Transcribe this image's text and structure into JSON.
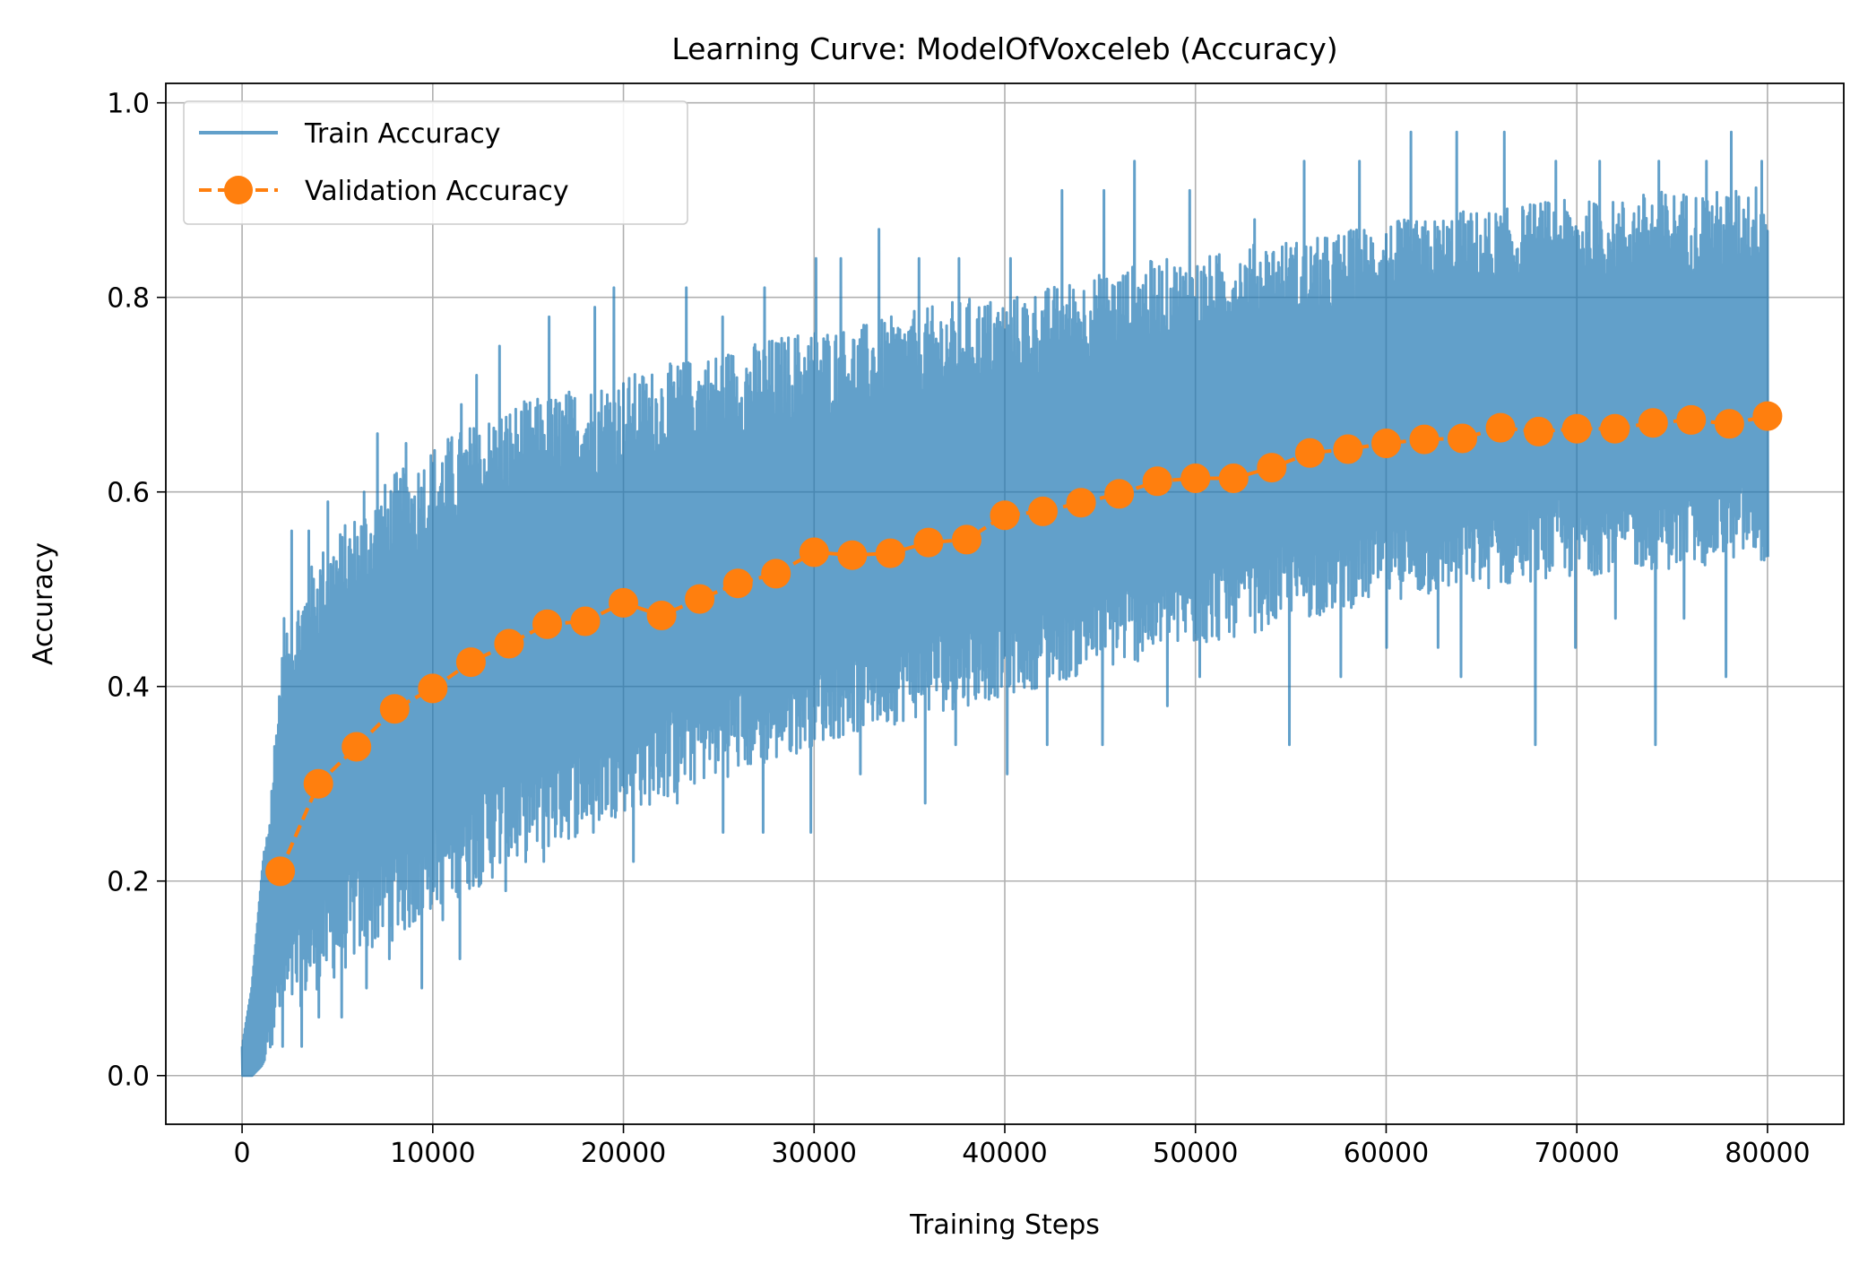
{
  "chart_data": {
    "type": "line",
    "title": "Learning Curve: ModelOfVoxceleb (Accuracy)",
    "xlabel": "Training Steps",
    "ylabel": "Accuracy",
    "xlim": [
      -4000,
      84000
    ],
    "ylim": [
      -0.05,
      1.02
    ],
    "xticks": [
      0,
      10000,
      20000,
      30000,
      40000,
      50000,
      60000,
      70000,
      80000
    ],
    "xtick_labels": [
      "0",
      "10000",
      "20000",
      "30000",
      "40000",
      "50000",
      "60000",
      "70000",
      "80000"
    ],
    "yticks": [
      0.0,
      0.2,
      0.4,
      0.6,
      0.8,
      1.0
    ],
    "ytick_labels": [
      "0.0",
      "0.2",
      "0.4",
      "0.6",
      "0.8",
      "1.0"
    ],
    "grid": true,
    "legend_position": "top-left",
    "series": [
      {
        "name": "Train Accuracy",
        "style": "solid-line",
        "color": "#1f77b4",
        "alpha": 0.7,
        "x": [
          0,
          500,
          1000,
          1500,
          2000,
          3000,
          4000,
          5000,
          6000,
          7000,
          8000,
          9000,
          10000,
          12000,
          14000,
          16000,
          18000,
          20000,
          22000,
          24000,
          26000,
          28000,
          30000,
          32000,
          34000,
          36000,
          38000,
          40000,
          42000,
          44000,
          46000,
          48000,
          50000,
          52000,
          54000,
          56000,
          58000,
          60000,
          62000,
          64000,
          66000,
          68000,
          70000,
          72000,
          74000,
          76000,
          78000,
          80000
        ],
        "lower": [
          0.0,
          0.0,
          0.01,
          0.03,
          0.05,
          0.07,
          0.09,
          0.1,
          0.12,
          0.13,
          0.14,
          0.15,
          0.17,
          0.19,
          0.21,
          0.23,
          0.25,
          0.27,
          0.28,
          0.3,
          0.31,
          0.32,
          0.34,
          0.35,
          0.36,
          0.37,
          0.38,
          0.39,
          0.4,
          0.41,
          0.42,
          0.43,
          0.44,
          0.45,
          0.46,
          0.47,
          0.48,
          0.49,
          0.49,
          0.5,
          0.5,
          0.51,
          0.51,
          0.52,
          0.52,
          0.52,
          0.53,
          0.53
        ],
        "upper": [
          0.03,
          0.09,
          0.2,
          0.3,
          0.43,
          0.5,
          0.54,
          0.56,
          0.58,
          0.6,
          0.62,
          0.63,
          0.65,
          0.67,
          0.69,
          0.7,
          0.71,
          0.72,
          0.73,
          0.74,
          0.75,
          0.76,
          0.77,
          0.77,
          0.78,
          0.79,
          0.8,
          0.8,
          0.81,
          0.82,
          0.83,
          0.84,
          0.84,
          0.85,
          0.86,
          0.86,
          0.87,
          0.88,
          0.88,
          0.89,
          0.89,
          0.9,
          0.9,
          0.9,
          0.91,
          0.91,
          0.91,
          0.92
        ],
        "spikes_high": [
          [
            2200,
            0.47
          ],
          [
            2600,
            0.56
          ],
          [
            3500,
            0.56
          ],
          [
            4500,
            0.59
          ],
          [
            6400,
            0.6
          ],
          [
            7100,
            0.66
          ],
          [
            8600,
            0.65
          ],
          [
            11500,
            0.69
          ],
          [
            12300,
            0.72
          ],
          [
            13500,
            0.75
          ],
          [
            16100,
            0.78
          ],
          [
            18500,
            0.79
          ],
          [
            19500,
            0.81
          ],
          [
            23300,
            0.81
          ],
          [
            25200,
            0.78
          ],
          [
            27400,
            0.81
          ],
          [
            30100,
            0.84
          ],
          [
            31400,
            0.84
          ],
          [
            33400,
            0.87
          ],
          [
            35500,
            0.84
          ],
          [
            37600,
            0.84
          ],
          [
            40300,
            0.84
          ],
          [
            43000,
            0.91
          ],
          [
            45200,
            0.91
          ],
          [
            46800,
            0.94
          ],
          [
            49700,
            0.91
          ],
          [
            53100,
            0.88
          ],
          [
            55700,
            0.94
          ],
          [
            58600,
            0.94
          ],
          [
            61300,
            0.97
          ],
          [
            63700,
            0.97
          ],
          [
            66200,
            0.97
          ],
          [
            68900,
            0.94
          ],
          [
            71200,
            0.94
          ],
          [
            74300,
            0.94
          ],
          [
            76800,
            0.94
          ],
          [
            78100,
            0.97
          ],
          [
            79700,
            0.94
          ]
        ],
        "spikes_low": [
          [
            2100,
            0.03
          ],
          [
            3100,
            0.03
          ],
          [
            4000,
            0.06
          ],
          [
            5200,
            0.06
          ],
          [
            6500,
            0.09
          ],
          [
            7700,
            0.12
          ],
          [
            9400,
            0.09
          ],
          [
            10500,
            0.16
          ],
          [
            11400,
            0.12
          ],
          [
            13800,
            0.19
          ],
          [
            15800,
            0.22
          ],
          [
            18400,
            0.25
          ],
          [
            20500,
            0.22
          ],
          [
            22800,
            0.28
          ],
          [
            25200,
            0.25
          ],
          [
            27300,
            0.25
          ],
          [
            29800,
            0.25
          ],
          [
            32400,
            0.31
          ],
          [
            35800,
            0.28
          ],
          [
            37400,
            0.34
          ],
          [
            40100,
            0.31
          ],
          [
            42200,
            0.34
          ],
          [
            45100,
            0.34
          ],
          [
            48500,
            0.38
          ],
          [
            50200,
            0.41
          ],
          [
            54900,
            0.34
          ],
          [
            57600,
            0.41
          ],
          [
            60000,
            0.44
          ],
          [
            62700,
            0.44
          ],
          [
            63900,
            0.41
          ],
          [
            67800,
            0.34
          ],
          [
            69900,
            0.44
          ],
          [
            72000,
            0.47
          ],
          [
            74100,
            0.34
          ],
          [
            75600,
            0.47
          ],
          [
            77800,
            0.41
          ],
          [
            79800,
            0.53
          ]
        ]
      },
      {
        "name": "Validation Accuracy",
        "style": "dashed-line-with-circle-markers",
        "color": "#ff7f0e",
        "x": [
          2000,
          4000,
          6000,
          8000,
          10000,
          12000,
          14000,
          16000,
          18000,
          20000,
          22000,
          24000,
          26000,
          28000,
          30000,
          32000,
          34000,
          36000,
          38000,
          40000,
          42000,
          44000,
          46000,
          48000,
          50000,
          52000,
          54000,
          56000,
          58000,
          60000,
          62000,
          64000,
          66000,
          68000,
          70000,
          72000,
          74000,
          76000,
          78000,
          80000
        ],
        "y": [
          0.21,
          0.3,
          0.338,
          0.377,
          0.398,
          0.425,
          0.444,
          0.464,
          0.467,
          0.486,
          0.473,
          0.49,
          0.506,
          0.516,
          0.538,
          0.535,
          0.537,
          0.548,
          0.551,
          0.576,
          0.58,
          0.589,
          0.598,
          0.611,
          0.614,
          0.614,
          0.625,
          0.64,
          0.644,
          0.65,
          0.654,
          0.655,
          0.666,
          0.662,
          0.665,
          0.665,
          0.671,
          0.674,
          0.67,
          0.678
        ]
      }
    ]
  }
}
